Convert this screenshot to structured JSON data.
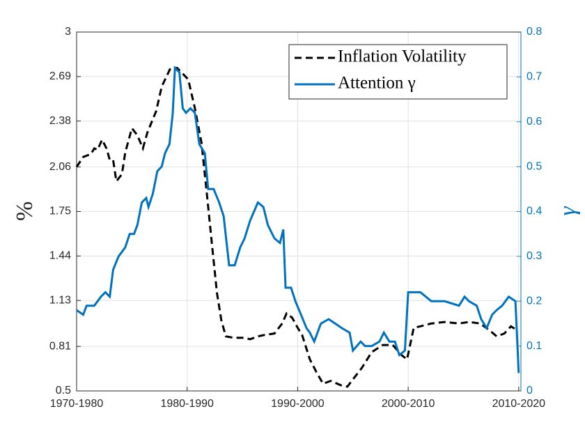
{
  "chart_data": {
    "type": "line",
    "ylabel": "%",
    "y2label": "γ",
    "xlim": [
      1970,
      2010.2
    ],
    "xticks": [
      {
        "value": 1970,
        "label": "1970-1980"
      },
      {
        "value": 1980,
        "label": "1980-1990"
      },
      {
        "value": 1990,
        "label": "1990-2000"
      },
      {
        "value": 2000,
        "label": "2000-2010"
      },
      {
        "value": 2010,
        "label": "2010-2020"
      }
    ],
    "ylim": [
      0.5,
      3
    ],
    "yticks": [
      0.5,
      0.81,
      1.13,
      1.44,
      1.75,
      2.06,
      2.38,
      2.69,
      3
    ],
    "y2lim": [
      0,
      0.8
    ],
    "y2ticks": [
      0,
      0.1,
      0.2,
      0.3,
      0.4,
      0.5,
      0.6,
      0.7,
      0.8
    ],
    "grid": true,
    "legend": "upper right",
    "series": [
      {
        "name": "Inflation Volatility",
        "color": "#000000",
        "dash": true,
        "x": [
          1970,
          1970.6,
          1971.3,
          1971.6,
          1971.9,
          1972.3,
          1972.7,
          1973,
          1973.3,
          1973.6,
          1974.1,
          1974.4,
          1975,
          1975.5,
          1976,
          1976.4,
          1977.2,
          1977.7,
          1978.5,
          1979.1,
          1979.6,
          1980.1,
          1980.7,
          1981.3,
          1981.8,
          1982.3,
          1982.7,
          1983.1,
          1983.5,
          1984.2,
          1985.1,
          1985.7,
          1986.4,
          1987,
          1987.9,
          1988.6,
          1989,
          1989.5,
          1990,
          1990.4,
          1991.1,
          1991.7,
          1992.3,
          1993,
          1993.9,
          1994.5,
          1995.2,
          1995.8,
          1996.7,
          1997.7,
          1998.6,
          1999.4,
          1999.9,
          2000.5,
          2001.1,
          2002.1,
          2003.3,
          2004.6,
          2005.5,
          2006.5,
          2007.4,
          2008,
          2008.7,
          2009.3,
          2009.9
        ],
        "values": [
          2.06,
          2.13,
          2.15,
          2.19,
          2.18,
          2.25,
          2.19,
          2.11,
          2.11,
          1.96,
          2.01,
          2.16,
          2.33,
          2.28,
          2.19,
          2.3,
          2.45,
          2.62,
          2.75,
          2.75,
          2.71,
          2.67,
          2.47,
          2.23,
          1.86,
          1.48,
          1.18,
          0.99,
          0.88,
          0.87,
          0.87,
          0.86,
          0.88,
          0.89,
          0.9,
          0.97,
          1.04,
          1.01,
          0.94,
          0.89,
          0.72,
          0.63,
          0.55,
          0.57,
          0.54,
          0.53,
          0.6,
          0.66,
          0.77,
          0.82,
          0.82,
          0.75,
          0.72,
          0.94,
          0.95,
          0.97,
          0.98,
          0.97,
          0.98,
          0.97,
          0.92,
          0.88,
          0.9,
          0.95,
          0.92
        ]
      },
      {
        "name": "Attention γ",
        "color": "#0072bd",
        "axis": "y2",
        "x": [
          1970,
          1970.6,
          1970.9,
          1971.6,
          1972.2,
          1972.6,
          1973,
          1973.3,
          1973.8,
          1974.4,
          1974.8,
          1975.2,
          1975.5,
          1975.9,
          1976.3,
          1976.5,
          1976.9,
          1977.3,
          1977.7,
          1978,
          1978.4,
          1978.7,
          1978.9,
          1979.3,
          1979.6,
          1979.9,
          1980.3,
          1980.7,
          1981.1,
          1981.6,
          1981.9,
          1982.4,
          1982.9,
          1983.3,
          1983.8,
          1984.3,
          1984.8,
          1985.2,
          1985.7,
          1986.4,
          1986.9,
          1987.3,
          1987.9,
          1988.4,
          1988.7,
          1988.9,
          1989.4,
          1989.8,
          1990.3,
          1990.8,
          1991.1,
          1991.5,
          1992.1,
          1992.8,
          1993.4,
          1994,
          1994.7,
          1995,
          1995.7,
          1996.1,
          1996.7,
          1997.4,
          1997.8,
          1998.3,
          1998.8,
          1999.2,
          1999.7,
          2000,
          2000.6,
          2001.1,
          2001.6,
          2002.1,
          2002.7,
          2003.3,
          2004.6,
          2005.1,
          2005.5,
          2006.2,
          2006.6,
          2007.1,
          2007.6,
          2008,
          2008.5,
          2009.1,
          2009.7,
          2010
        ],
        "values": [
          0.18,
          0.17,
          0.19,
          0.19,
          0.21,
          0.22,
          0.21,
          0.27,
          0.3,
          0.32,
          0.35,
          0.35,
          0.37,
          0.42,
          0.43,
          0.41,
          0.44,
          0.49,
          0.5,
          0.53,
          0.55,
          0.62,
          0.72,
          0.71,
          0.63,
          0.62,
          0.63,
          0.62,
          0.55,
          0.53,
          0.45,
          0.45,
          0.42,
          0.39,
          0.28,
          0.28,
          0.32,
          0.34,
          0.38,
          0.42,
          0.41,
          0.37,
          0.34,
          0.33,
          0.36,
          0.23,
          0.23,
          0.2,
          0.17,
          0.14,
          0.13,
          0.11,
          0.15,
          0.16,
          0.15,
          0.14,
          0.13,
          0.09,
          0.11,
          0.1,
          0.1,
          0.11,
          0.13,
          0.11,
          0.11,
          0.08,
          0.09,
          0.22,
          0.22,
          0.22,
          0.21,
          0.2,
          0.2,
          0.2,
          0.19,
          0.21,
          0.2,
          0.19,
          0.16,
          0.14,
          0.17,
          0.18,
          0.19,
          0.21,
          0.2,
          0.04
        ]
      }
    ]
  }
}
